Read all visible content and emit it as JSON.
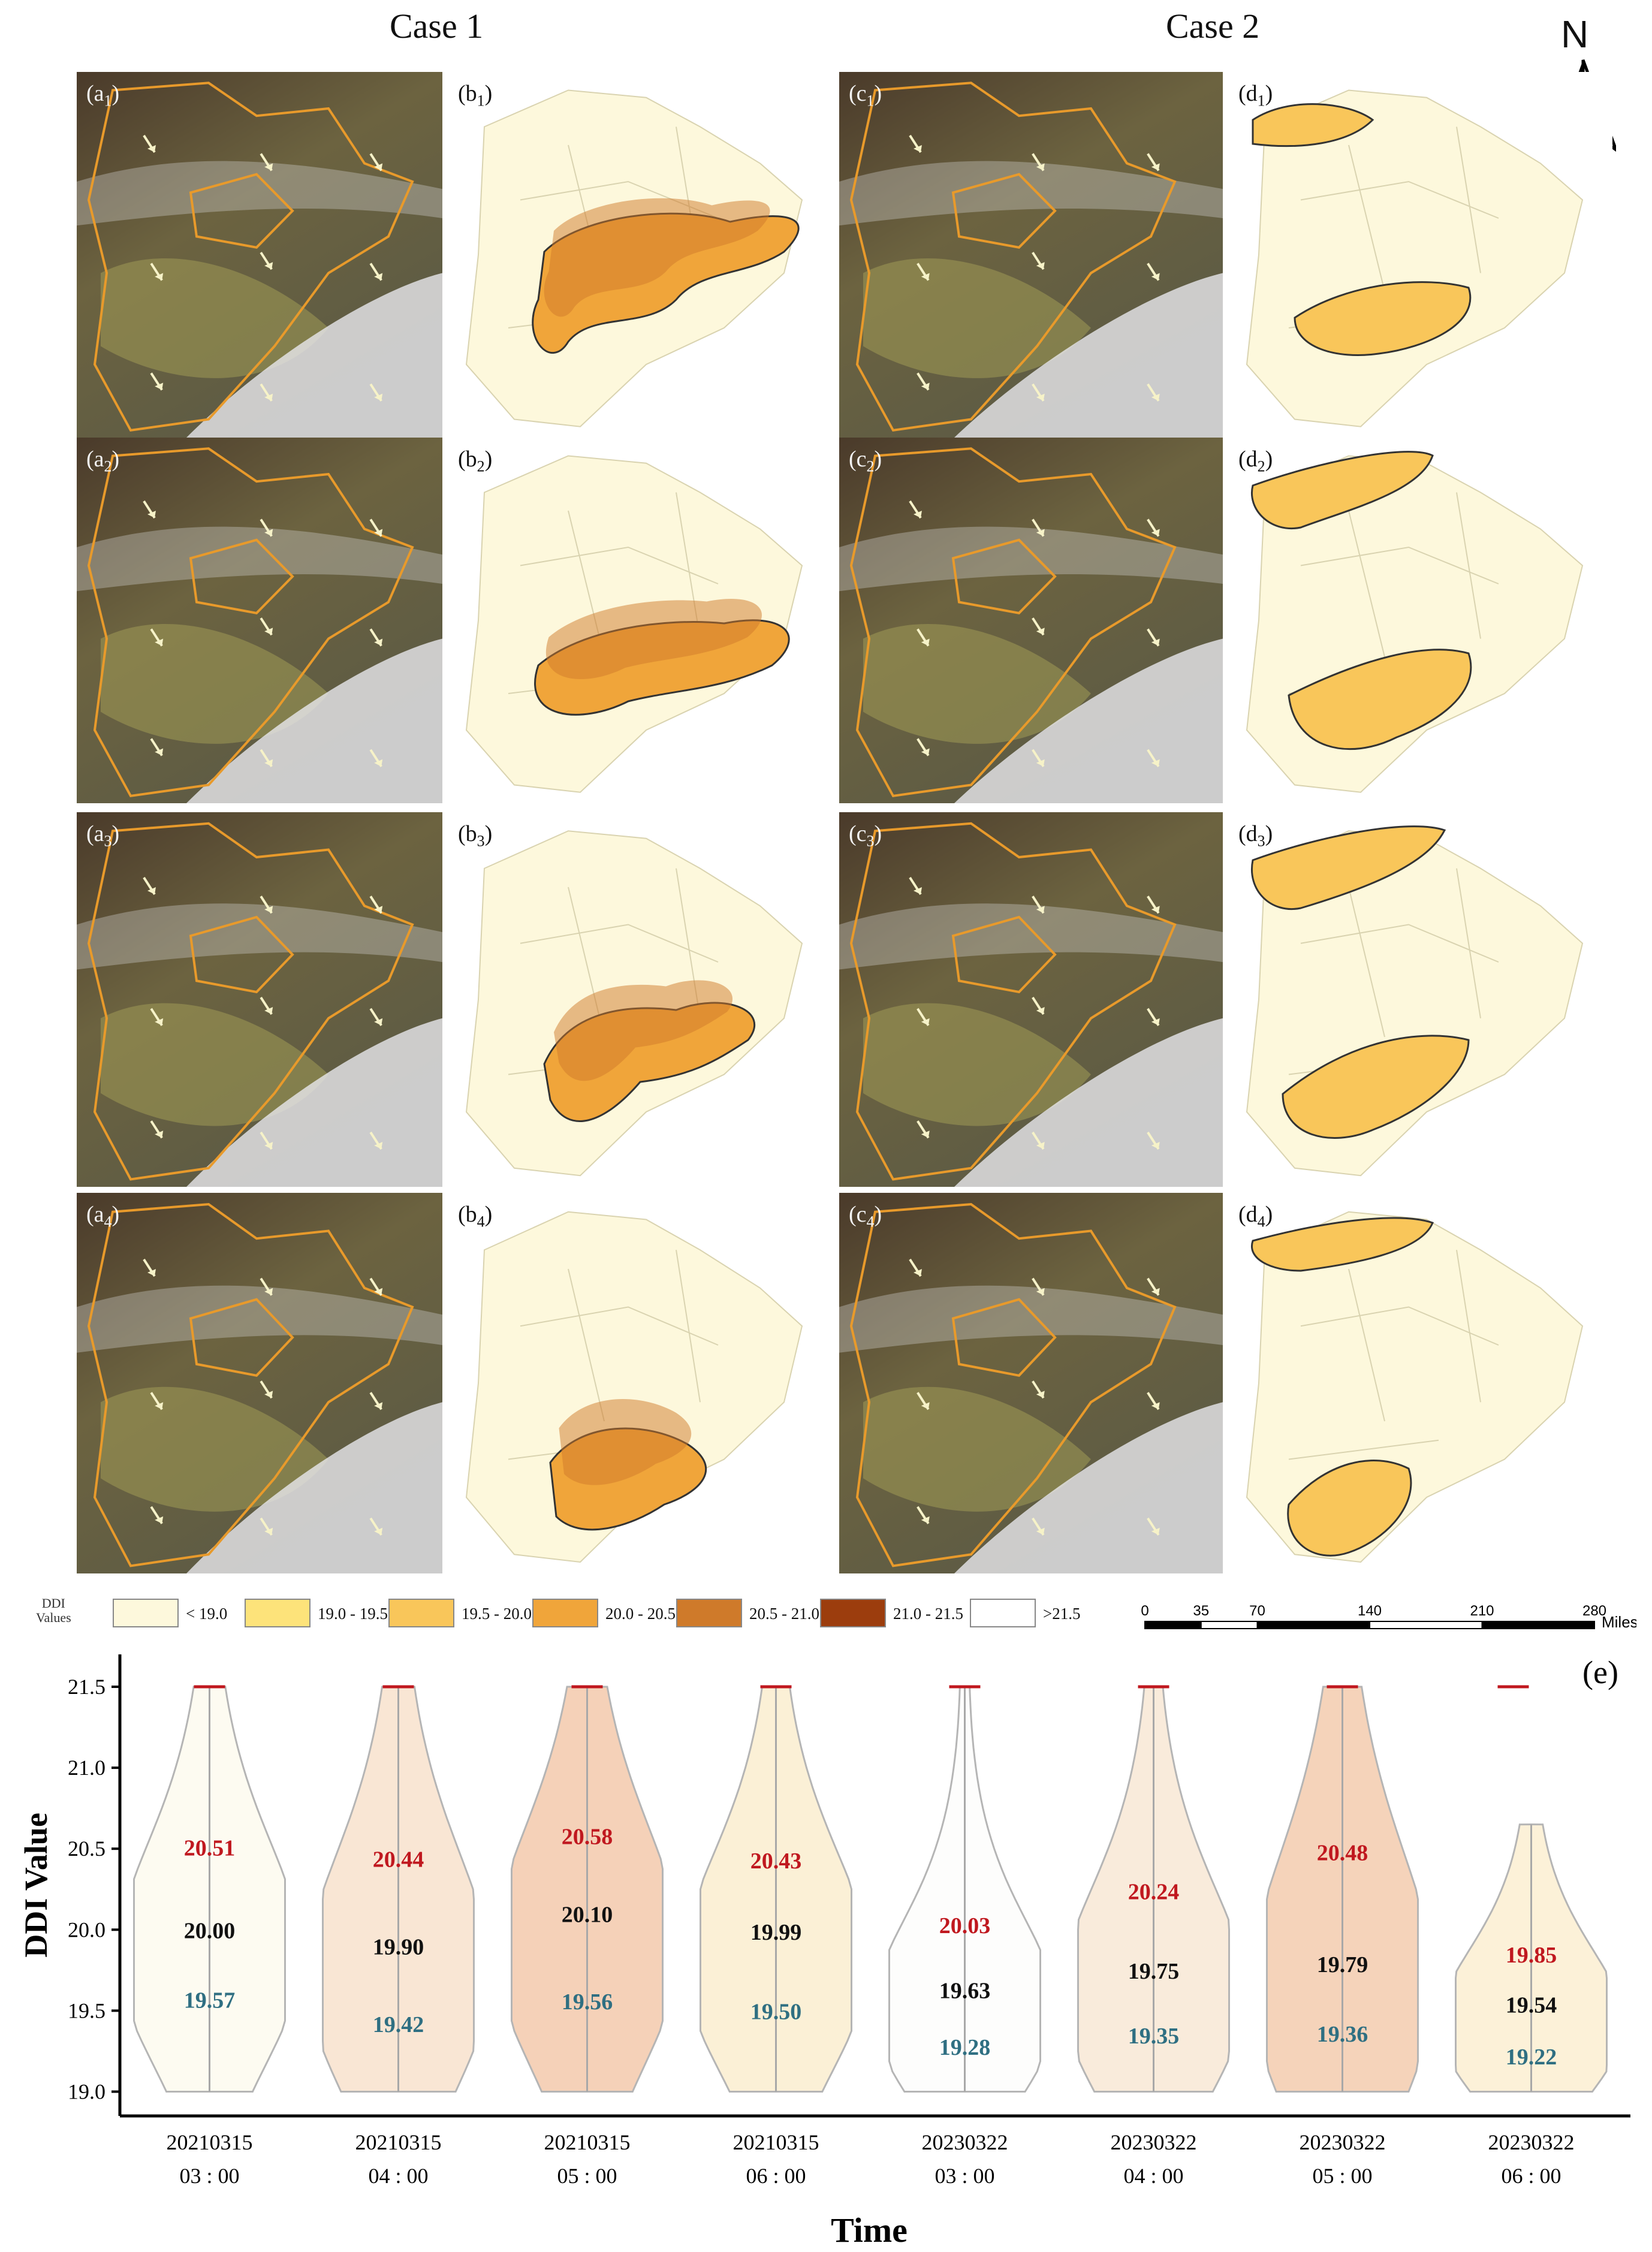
{
  "titles": {
    "case1": "Case 1",
    "case2": "Case 2"
  },
  "north_label": "N",
  "panels": {
    "a": [
      "a",
      "a",
      "a",
      "a"
    ],
    "b": [
      "b",
      "b",
      "b",
      "b"
    ],
    "c": [
      "c",
      "c",
      "c",
      "c"
    ],
    "d": [
      "d",
      "d",
      "d",
      "d"
    ],
    "subs": [
      "1",
      "2",
      "3",
      "4"
    ]
  },
  "legend": {
    "title_line1": "DDI",
    "title_line2": "Values",
    "items": [
      {
        "label": "< 19.0",
        "color": "#fdf8dc"
      },
      {
        "label": "19.0 - 19.5",
        "color": "#fde37a"
      },
      {
        "label": "19.5 - 20.0",
        "color": "#f9c65a"
      },
      {
        "label": "20.0 - 20.5",
        "color": "#f0a53a"
      },
      {
        "label": "20.5 - 21.0",
        "color": "#cf7a2a"
      },
      {
        "label": "21.0 - 21.5",
        "color": "#9c3d0d"
      },
      {
        "label": ">21.5",
        "color": "#ffffff"
      }
    ]
  },
  "scale": {
    "ticks": [
      "0",
      "35",
      "70",
      "140",
      "210",
      "280"
    ],
    "unit": "Miles"
  },
  "chart_data": {
    "type": "violin",
    "panel_label": "(e)",
    "xlabel": "Time",
    "ylabel": "DDI Value",
    "ylim": [
      18.85,
      21.7
    ],
    "yticks": [
      "19.0",
      "19.5",
      "20.0",
      "20.5",
      "21.0",
      "21.5"
    ],
    "categories": [
      {
        "date": "20210315",
        "time": "03 : 00"
      },
      {
        "date": "20210315",
        "time": "04 : 00"
      },
      {
        "date": "20210315",
        "time": "05 : 00"
      },
      {
        "date": "20210315",
        "time": "06 : 00"
      },
      {
        "date": "20230322",
        "time": "03 : 00"
      },
      {
        "date": "20230322",
        "time": "04 : 00"
      },
      {
        "date": "20230322",
        "time": "05 : 00"
      },
      {
        "date": "20230322",
        "time": "06 : 00"
      }
    ],
    "q3": [
      "20.51",
      "20.44",
      "20.58",
      "20.43",
      "20.03",
      "20.24",
      "20.48",
      "19.85"
    ],
    "median": [
      "20.00",
      "19.90",
      "20.10",
      "19.99",
      "19.63",
      "19.75",
      "19.79",
      "19.54"
    ],
    "q1": [
      "19.57",
      "19.42",
      "19.56",
      "19.50",
      "19.28",
      "19.35",
      "19.36",
      "19.22"
    ],
    "max": [
      21.5,
      21.5,
      21.5,
      21.5,
      21.5,
      21.5,
      21.5,
      20.65
    ],
    "min": [
      19.0,
      19.0,
      19.0,
      19.0,
      19.0,
      19.0,
      19.0,
      19.0
    ],
    "threshold": 21.5,
    "fill_colors": [
      "#fdfbf1",
      "#f9e6d4",
      "#f5d1b8",
      "#fbf0d6",
      "#fdfdfc",
      "#f9ebdb",
      "#f5d3ba",
      "#fcf1d8"
    ],
    "label_colors": {
      "q3": "#c0181f",
      "median": "#111111",
      "q1": "#2f6f82",
      "threshold": "#c0181f"
    }
  }
}
